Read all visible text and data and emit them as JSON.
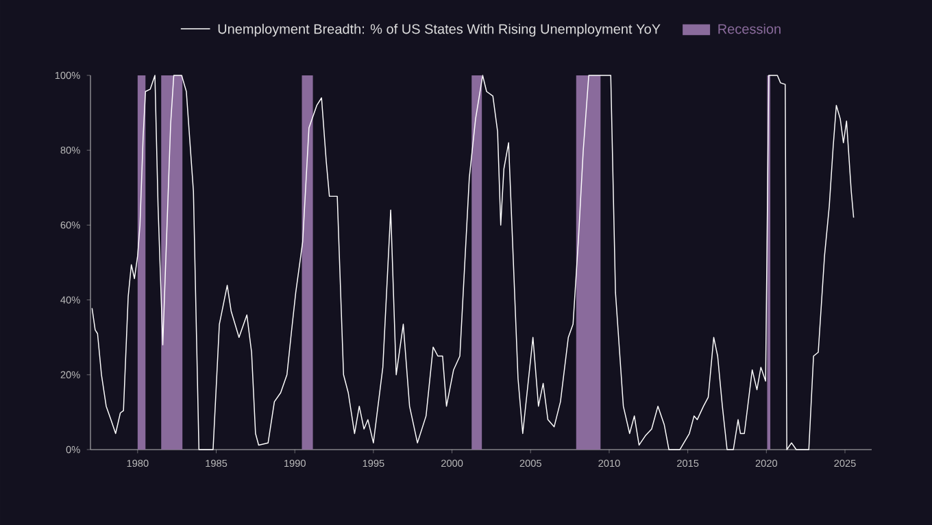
{
  "chart_data": {
    "type": "line",
    "x": [
      1977.1,
      1977.3,
      1977.45,
      1977.7,
      1978.0,
      1978.3,
      1978.6,
      1978.9,
      1979.1,
      1979.4,
      1979.6,
      1979.8,
      1980.0,
      1980.15,
      1980.35,
      1980.5,
      1980.8,
      1981.1,
      1981.3,
      1981.6,
      1982.1,
      1982.3,
      1982.8,
      1983.1,
      1983.55,
      1983.9,
      1984.8,
      1985.2,
      1985.7,
      1985.95,
      1986.45,
      1986.95,
      1987.25,
      1987.5,
      1987.7,
      1988.3,
      1988.7,
      1989.1,
      1989.5,
      1989.8,
      1990.06,
      1990.5,
      1990.9,
      1991.4,
      1991.7,
      1992.0,
      1992.2,
      1992.7,
      1993.1,
      1993.4,
      1993.8,
      1994.1,
      1994.4,
      1994.65,
      1995.0,
      1995.6,
      1996.1,
      1996.45,
      1996.9,
      1997.3,
      1997.8,
      1998.35,
      1998.8,
      1999.1,
      1999.4,
      1999.65,
      2000.1,
      2000.5,
      2001.1,
      2001.5,
      2001.95,
      2002.2,
      2002.6,
      2002.9,
      2003.1,
      2003.3,
      2003.6,
      2003.9,
      2004.2,
      2004.5,
      2005.15,
      2005.5,
      2005.8,
      2006.1,
      2006.5,
      2006.9,
      2007.4,
      2007.7,
      2008.05,
      2008.35,
      2008.7,
      2010.1,
      2010.4,
      2010.9,
      2011.3,
      2011.6,
      2011.9,
      2012.3,
      2012.7,
      2013.1,
      2013.5,
      2013.8,
      2014.5,
      2015.1,
      2015.4,
      2015.6,
      2016.0,
      2016.3,
      2016.65,
      2016.9,
      2017.2,
      2017.5,
      2017.9,
      2018.2,
      2018.35,
      2018.6,
      2019.1,
      2019.4,
      2019.65,
      2019.95,
      2020.15,
      2020.7,
      2020.9,
      2021.2,
      2021.3,
      2021.6,
      2021.9,
      2022.7,
      2023.0,
      2023.3,
      2023.7,
      2024.0,
      2024.25,
      2024.45,
      2024.7,
      2024.9,
      2025.1,
      2025.4,
      2025.55
    ],
    "series": [
      {
        "name": "Unemployment Breadth: % of US States With Rising Unemployment YoY",
        "color": "#ffffff",
        "values": [
          37.8,
          32,
          31,
          20,
          11.6,
          8,
          4.3,
          9.8,
          10.4,
          40.9,
          49.4,
          45.7,
          51.8,
          60,
          83.5,
          95.7,
          96.3,
          100,
          65,
          28,
          87,
          100,
          100,
          95.7,
          69,
          0,
          0,
          33.5,
          43.9,
          37,
          30,
          36,
          26,
          4.3,
          1.2,
          1.8,
          12.8,
          15.2,
          20,
          32,
          42,
          55.5,
          86,
          92,
          94,
          77,
          67.7,
          67.7,
          20,
          15.2,
          4.3,
          11.6,
          5.5,
          8,
          1.8,
          22,
          64,
          20,
          33.5,
          11.6,
          1.8,
          9,
          27.4,
          25,
          25,
          11.6,
          21.3,
          25,
          72.6,
          88.4,
          100,
          95.7,
          94.5,
          85,
          60,
          75,
          82,
          50.6,
          19,
          4.3,
          30,
          11.6,
          17.7,
          8,
          6.1,
          12.8,
          30,
          33.5,
          56.7,
          80,
          100,
          100,
          42,
          11.6,
          4.3,
          9,
          1.2,
          3.7,
          5.5,
          11.6,
          6.7,
          0,
          0,
          4.3,
          9,
          8,
          11.6,
          14,
          30,
          25,
          11.6,
          0,
          0,
          8,
          4.3,
          4.3,
          21.3,
          16,
          22,
          18.3,
          100,
          100,
          98,
          97.6,
          0,
          1.8,
          0,
          0,
          25,
          26,
          51.8,
          65,
          81,
          92,
          88.4,
          82,
          87.8,
          69,
          62
        ]
      }
    ],
    "bands": [
      {
        "axis": "x",
        "from": 1980.0,
        "to": 1980.5,
        "label": "Recession",
        "color": "#8a6b9c"
      },
      {
        "axis": "x",
        "from": 1981.5,
        "to": 1982.85,
        "color": "#8a6b9c"
      },
      {
        "axis": "x",
        "from": 1990.45,
        "to": 1991.15,
        "color": "#8a6b9c"
      },
      {
        "axis": "x",
        "from": 2001.25,
        "to": 2001.9,
        "color": "#8a6b9c"
      },
      {
        "axis": "x",
        "from": 2007.9,
        "to": 2009.45,
        "color": "#8a6b9c"
      },
      {
        "axis": "x",
        "from": 2020.05,
        "to": 2020.25,
        "color": "#8a6b9c"
      }
    ],
    "xlim": [
      1977,
      2026.7
    ],
    "xticks": [
      1980,
      1985,
      1990,
      1995,
      2000,
      2005,
      2010,
      2015,
      2020,
      2025
    ],
    "ylim": [
      0,
      100
    ],
    "yticks": [
      {
        "value": 0,
        "label": "0%"
      },
      {
        "value": 20,
        "label": "20%"
      },
      {
        "value": 40,
        "label": "40%"
      },
      {
        "value": 60,
        "label": "60%"
      },
      {
        "value": 80,
        "label": "80%"
      },
      {
        "value": 100,
        "label": "100%"
      }
    ],
    "grid": false,
    "legend": "top",
    "marker": "none",
    "line_style": "solid"
  }
}
